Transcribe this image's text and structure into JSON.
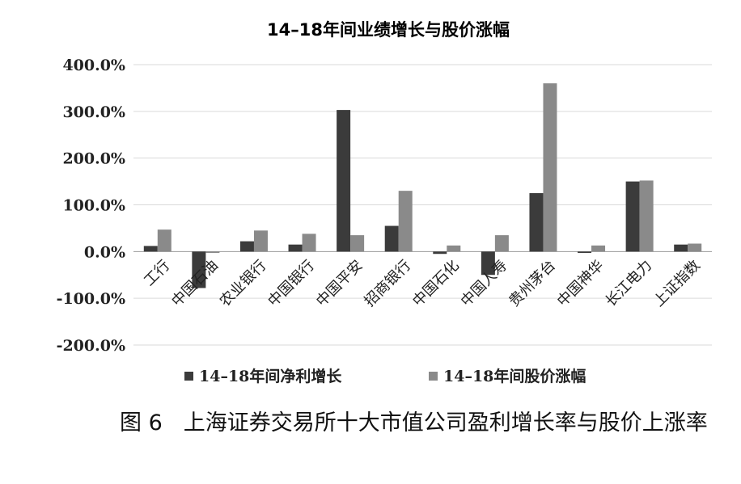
{
  "chart_data": {
    "type": "bar",
    "title": "14–18年间业绩增长与股价涨幅",
    "categories": [
      "工行",
      "中国石油",
      "农业银行",
      "中国银行",
      "中国平安",
      "招商银行",
      "中国石化",
      "中国人寿",
      "贵州茅台",
      "中国神华",
      "长江电力",
      "上证指数"
    ],
    "series": [
      {
        "name": "14–18年间净利增长",
        "color": "#3b3b3b",
        "values": [
          12,
          -78,
          22,
          15,
          303,
          55,
          -5,
          -50,
          125,
          -3,
          150,
          15
        ]
      },
      {
        "name": "14–18年间股价涨幅",
        "color": "#8a8a8a",
        "values": [
          47,
          -3,
          45,
          38,
          35,
          130,
          13,
          35,
          360,
          13,
          152,
          17
        ]
      }
    ],
    "yticks": [
      "400.0%",
      "300.0%",
      "200.0%",
      "100.0%",
      "0.0%",
      "-100.0%",
      "-200.0%"
    ],
    "ylim": [
      -200,
      400
    ],
    "grid": true,
    "legend_position": "bottom"
  },
  "caption": {
    "figure_number": "图 6",
    "text": "上海证券交易所十大市值公司盈利增长率与股价上涨率"
  }
}
